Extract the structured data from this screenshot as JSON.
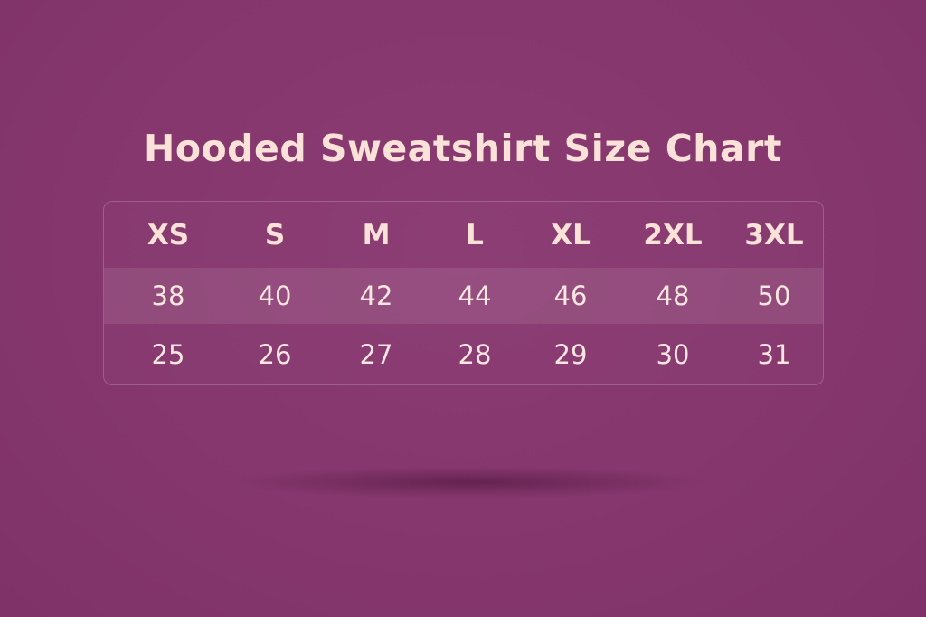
{
  "title": "Hooded Sweatshirt Size Chart",
  "colors": {
    "background": "#86386e",
    "highlight_row": "#8f4679",
    "text": "#fbe2d8"
  },
  "chart_data": {
    "type": "table",
    "title": "Hooded Sweatshirt Size Chart",
    "columns": [
      "XS",
      "S",
      "M",
      "L",
      "XL",
      "2XL",
      "3XL"
    ],
    "rows": [
      [
        "38",
        "40",
        "42",
        "44",
        "46",
        "48",
        "50"
      ],
      [
        "25",
        "26",
        "27",
        "28",
        "29",
        "30",
        "31"
      ]
    ]
  }
}
